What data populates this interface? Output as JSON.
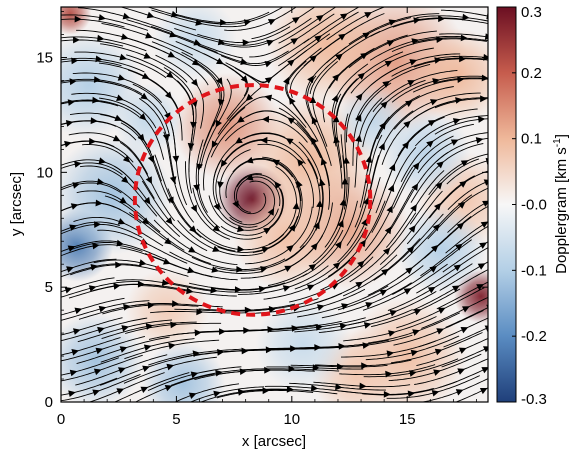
{
  "chart_data": {
    "type": "heatmap",
    "title": "",
    "xlabel": "x [arcsec]",
    "ylabel": "y [arcsec]",
    "xlim": [
      0,
      18.5
    ],
    "ylim": [
      0,
      17.2
    ],
    "xticks": [
      0,
      5,
      10,
      15
    ],
    "yticks": [
      0,
      5,
      10,
      15
    ],
    "colorbar": {
      "label_main": "Dopplergram [km s",
      "label_sup": "-1",
      "label_close": "]",
      "range": [
        -0.3,
        0.3
      ],
      "ticks": [
        "0.3",
        "0.2",
        "0.1",
        "-0.0",
        "-0.1",
        "-0.2",
        "-0.3"
      ],
      "tick_values": [
        0.3,
        0.2,
        0.1,
        0.0,
        -0.1,
        -0.2,
        -0.3
      ],
      "colormap": [
        "#1f3f7a",
        "#5a8cc2",
        "#b3cfe6",
        "#f7f7f7",
        "#efb89a",
        "#c65c4d",
        "#6b0f22"
      ]
    },
    "vortex": {
      "center": [
        8.3,
        8.8
      ],
      "radius_x": 5.1,
      "radius_y": 5.0,
      "circle_color": "#e0151b",
      "circle_style": "dashed"
    },
    "doppler_blobs": [
      {
        "x": 8.3,
        "y": 8.8,
        "v": 0.3,
        "r": 1.2
      },
      {
        "x": 7.2,
        "y": 12.0,
        "v": 0.14,
        "r": 1.8
      },
      {
        "x": 10.8,
        "y": 10.5,
        "v": 0.1,
        "r": 2.2
      },
      {
        "x": 12.5,
        "y": 7.5,
        "v": 0.12,
        "r": 2.0
      },
      {
        "x": 9.8,
        "y": 7.2,
        "v": 0.09,
        "r": 1.8
      },
      {
        "x": 14.5,
        "y": 14.8,
        "v": 0.13,
        "r": 2.4
      },
      {
        "x": 17.2,
        "y": 14.2,
        "v": 0.1,
        "r": 1.6
      },
      {
        "x": 18.2,
        "y": 4.6,
        "v": 0.28,
        "r": 0.9
      },
      {
        "x": 0.4,
        "y": 16.9,
        "v": 0.22,
        "r": 0.7
      },
      {
        "x": 11.5,
        "y": 15.6,
        "v": 0.1,
        "r": 2.0
      },
      {
        "x": 15.0,
        "y": 2.0,
        "v": 0.09,
        "r": 2.0
      },
      {
        "x": 17.5,
        "y": 8.8,
        "v": 0.08,
        "r": 1.6
      },
      {
        "x": 4.6,
        "y": 4.0,
        "v": 0.07,
        "r": 1.4
      },
      {
        "x": 12.8,
        "y": 1.2,
        "v": 0.08,
        "r": 1.5
      },
      {
        "x": 1.2,
        "y": 13.8,
        "v": -0.1,
        "r": 1.8
      },
      {
        "x": 0.7,
        "y": 6.8,
        "v": -0.22,
        "r": 1.2
      },
      {
        "x": 2.2,
        "y": 9.0,
        "v": -0.12,
        "r": 2.0
      },
      {
        "x": 1.5,
        "y": 1.8,
        "v": -0.12,
        "r": 1.6
      },
      {
        "x": 5.3,
        "y": 0.8,
        "v": -0.12,
        "r": 1.4
      },
      {
        "x": 13.5,
        "y": 12.2,
        "v": -0.08,
        "r": 1.2
      },
      {
        "x": 15.8,
        "y": 10.8,
        "v": -0.09,
        "r": 1.5
      },
      {
        "x": 16.5,
        "y": 6.6,
        "v": -0.1,
        "r": 1.5
      },
      {
        "x": 10.5,
        "y": 2.5,
        "v": -0.07,
        "r": 1.6
      },
      {
        "x": 5.8,
        "y": 15.8,
        "v": -0.07,
        "r": 1.4
      },
      {
        "x": 3.8,
        "y": 12.3,
        "v": -0.08,
        "r": 1.2
      }
    ],
    "flow": {
      "vortex_center": [
        8.3,
        8.8
      ],
      "swirl": 1.0,
      "inflow": 0.35,
      "background_velocity": [
        0.9,
        0.15
      ],
      "vortex_scale": 4.0,
      "arrow_color": "#000000"
    }
  }
}
